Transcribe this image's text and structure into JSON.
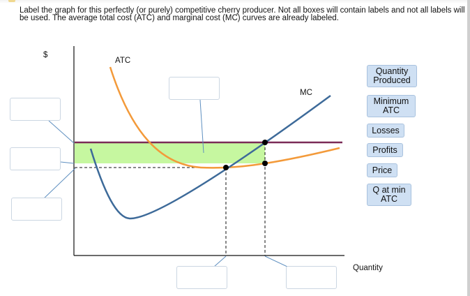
{
  "instructions": "Label the graph for this perfectly (or purely) competitive cherry producer. Not all boxes will contain labels and not all labels will be used. The average total cost (ATC) and marginal cost (MC) curves are already labeled.",
  "graph": {
    "y_axis_label": "$",
    "x_axis_label": "Quantity",
    "atc_label": "ATC",
    "mc_label": "MC"
  },
  "labels": [
    "Quantity\nProduced",
    "Minimum\nATC",
    "Losses",
    "Profits",
    "Price",
    "Q at min\nATC"
  ],
  "colors": {
    "atc_curve": "#f39a3a",
    "mc_curve": "#3d6a99",
    "price_line": "#7b2b57",
    "shaded_region": "#c6f7a0",
    "label_chip": "#cfe0f3"
  }
}
